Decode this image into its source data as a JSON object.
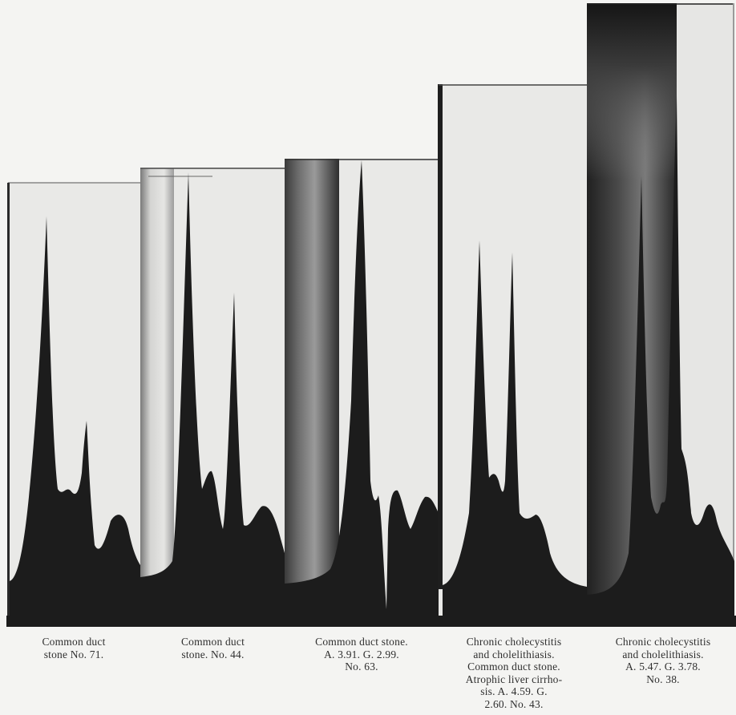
{
  "figure": {
    "panels": [
      {
        "id": "panel-1",
        "caption_lines": [
          "Common  duct",
          "stone   No. 71."
        ]
      },
      {
        "id": "panel-2",
        "caption_lines": [
          "Common  duct",
          "stone.   No. 44."
        ]
      },
      {
        "id": "panel-3",
        "caption_lines": [
          "Common  duct  stone.",
          "A. 3.91.   G. 2.99.",
          "No. 63."
        ]
      },
      {
        "id": "panel-4",
        "caption_lines": [
          "Chronic cholecystitis",
          "and  cholelithiasis.",
          "Common  duct  stone.",
          "Atrophic  liver  cirrho-",
          "sis.   A.   4.59.   G.",
          "2.60.   No. 43."
        ]
      },
      {
        "id": "panel-5",
        "caption_lines": [
          "Chronic cholecystitis",
          "and  cholelithiasis.",
          "A. 5.47.   G. 3.78.",
          "No. 38."
        ]
      }
    ]
  }
}
